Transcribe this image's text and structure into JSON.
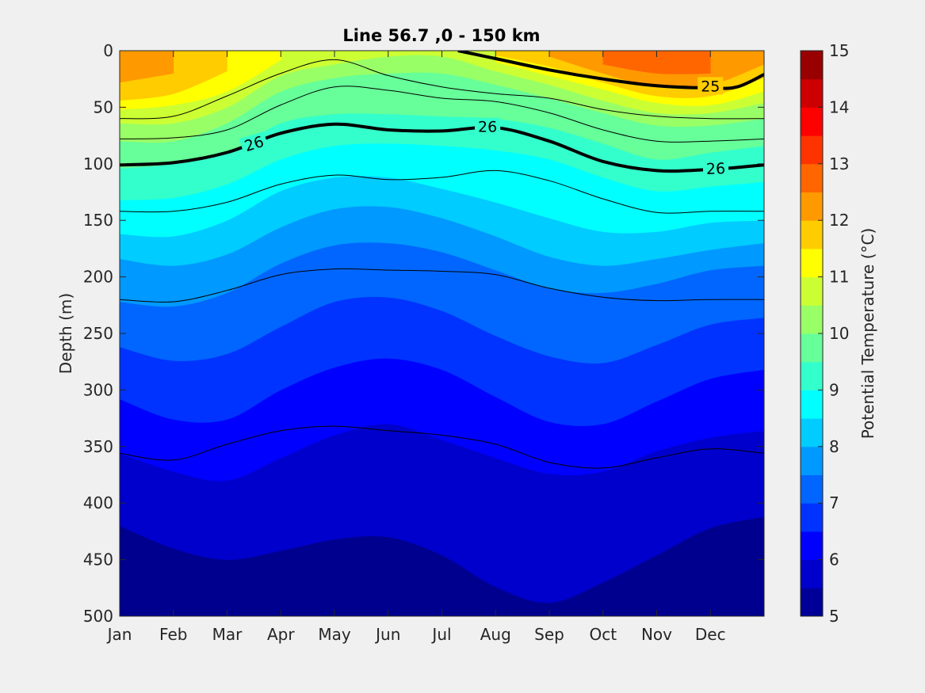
{
  "chart_data": {
    "type": "contourf",
    "title": "Line 56.7 ,0 - 150 km",
    "xlabel": "",
    "ylabel": "Depth (m)",
    "xlim": [
      1,
      13
    ],
    "ylim": [
      500,
      0
    ],
    "y_reversed": true,
    "x_ticks": [
      {
        "label": "Jan",
        "value": 1
      },
      {
        "label": "Feb",
        "value": 2
      },
      {
        "label": "Mar",
        "value": 3
      },
      {
        "label": "Apr",
        "value": 4
      },
      {
        "label": "May",
        "value": 5
      },
      {
        "label": "Jun",
        "value": 6
      },
      {
        "label": "Jul",
        "value": 7
      },
      {
        "label": "Aug",
        "value": 8
      },
      {
        "label": "Sep",
        "value": 9
      },
      {
        "label": "Oct",
        "value": 10
      },
      {
        "label": "Nov",
        "value": 11
      },
      {
        "label": "Dec",
        "value": 12
      }
    ],
    "y_ticks": [
      0,
      50,
      100,
      150,
      200,
      250,
      300,
      350,
      400,
      450,
      500
    ],
    "colorbar": {
      "label": "Potential Temperature (°C)",
      "range": [
        5,
        15
      ],
      "step": 0.5,
      "ticks": [
        5,
        6,
        7,
        8,
        9,
        10,
        11,
        12,
        13,
        14,
        15
      ],
      "colormap": "jet"
    },
    "temperature_isotherm_depths": {
      "x": [
        1,
        2,
        3,
        4,
        5,
        6,
        7,
        8,
        9,
        10,
        11,
        12,
        13
      ],
      "12.5": [
        null,
        null,
        null,
        null,
        null,
        null,
        null,
        null,
        null,
        12,
        20,
        20,
        null
      ],
      "12": [
        28,
        20,
        null,
        null,
        null,
        null,
        null,
        null,
        5,
        20,
        32,
        30,
        12
      ],
      "11.5": [
        44,
        38,
        18,
        null,
        null,
        null,
        null,
        4,
        14,
        28,
        40,
        40,
        24
      ],
      "11": [
        52,
        48,
        36,
        8,
        null,
        null,
        null,
        10,
        22,
        34,
        46,
        48,
        36
      ],
      "10.5": [
        64,
        64,
        50,
        22,
        12,
        5,
        5,
        18,
        30,
        44,
        55,
        55,
        46
      ],
      "10": [
        80,
        80,
        64,
        36,
        24,
        20,
        20,
        30,
        42,
        55,
        66,
        66,
        60
      ],
      "9.5": [
        104,
        100,
        90,
        64,
        56,
        56,
        58,
        60,
        68,
        82,
        96,
        90,
        84
      ],
      "9": [
        132,
        130,
        118,
        96,
        84,
        82,
        84,
        88,
        96,
        112,
        124,
        120,
        116
      ],
      "8.5": [
        162,
        164,
        150,
        124,
        112,
        112,
        122,
        134,
        148,
        160,
        160,
        152,
        150
      ],
      "8": [
        184,
        190,
        180,
        156,
        140,
        138,
        148,
        164,
        182,
        190,
        184,
        176,
        170
      ],
      "7.5": [
        222,
        226,
        214,
        188,
        172,
        170,
        178,
        194,
        210,
        214,
        206,
        194,
        190
      ],
      "7": [
        262,
        274,
        268,
        244,
        222,
        218,
        230,
        252,
        270,
        276,
        260,
        242,
        236
      ],
      "6.5": [
        308,
        326,
        326,
        300,
        280,
        272,
        282,
        306,
        328,
        330,
        310,
        290,
        282
      ],
      "6": [
        356,
        372,
        380,
        360,
        340,
        330,
        344,
        360,
        374,
        372,
        354,
        342,
        336
      ],
      "5.5": [
        420,
        440,
        450,
        442,
        432,
        430,
        446,
        474,
        488,
        470,
        446,
        422,
        412
      ]
    },
    "density_contours": [
      {
        "label": "",
        "emphasis": false,
        "x": [
          1,
          2,
          3,
          4,
          5,
          6,
          7,
          8,
          9,
          10,
          11,
          12,
          13
        ],
        "depth": [
          142,
          142,
          134,
          118,
          110,
          114,
          112,
          106,
          115,
          131,
          143,
          142,
          142
        ]
      },
      {
        "label": "",
        "emphasis": false,
        "x": [
          1,
          2,
          3,
          4,
          5,
          6,
          7,
          8,
          9,
          10,
          11,
          12,
          13
        ],
        "depth": [
          220,
          222,
          212,
          198,
          193,
          194,
          195,
          198,
          210,
          218,
          221,
          220,
          220
        ]
      },
      {
        "label": "",
        "emphasis": false,
        "x": [
          1,
          2,
          3,
          4,
          5,
          6,
          7,
          8,
          9,
          10,
          11,
          12,
          13
        ],
        "depth": [
          356,
          362,
          348,
          336,
          332,
          336,
          340,
          348,
          364,
          369,
          360,
          352,
          356
        ]
      },
      {
        "label": "26",
        "emphasis": true,
        "x": [
          1,
          2,
          3,
          4,
          5,
          6,
          7,
          8,
          9,
          10,
          11,
          12,
          13
        ],
        "depth": [
          101,
          99,
          90,
          73,
          65,
          70,
          71,
          68,
          80,
          98,
          106,
          105,
          101
        ]
      },
      {
        "label": "25",
        "emphasis": true,
        "x": [
          7.3,
          8,
          9,
          10,
          11,
          12,
          12.5,
          13
        ],
        "depth": [
          0,
          7,
          17,
          25,
          31,
          33,
          32,
          21
        ]
      },
      {
        "label": "",
        "emphasis": false,
        "x": [
          1,
          2,
          3,
          4,
          5,
          6,
          7,
          8,
          9,
          10,
          11,
          12,
          13
        ],
        "depth": [
          78,
          77,
          70,
          48,
          32,
          35,
          42,
          45,
          55,
          70,
          80,
          80,
          78
        ]
      },
      {
        "label": "",
        "emphasis": false,
        "x": [
          1,
          2,
          3,
          4,
          5,
          6,
          7,
          8,
          9,
          10,
          11,
          12,
          13
        ],
        "depth": [
          60,
          58,
          40,
          20,
          8,
          22,
          32,
          38,
          42,
          52,
          58,
          60,
          60
        ]
      }
    ],
    "density_contour_labels": [
      {
        "text": "26",
        "x": 3.5,
        "depth": 82,
        "angle": -17
      },
      {
        "text": "26",
        "x": 7.85,
        "depth": 67,
        "angle": 0
      },
      {
        "text": "26",
        "x": 12.1,
        "depth": 104,
        "angle": -2
      },
      {
        "text": "25",
        "x": 12.0,
        "depth": 31,
        "angle": 0
      }
    ]
  }
}
